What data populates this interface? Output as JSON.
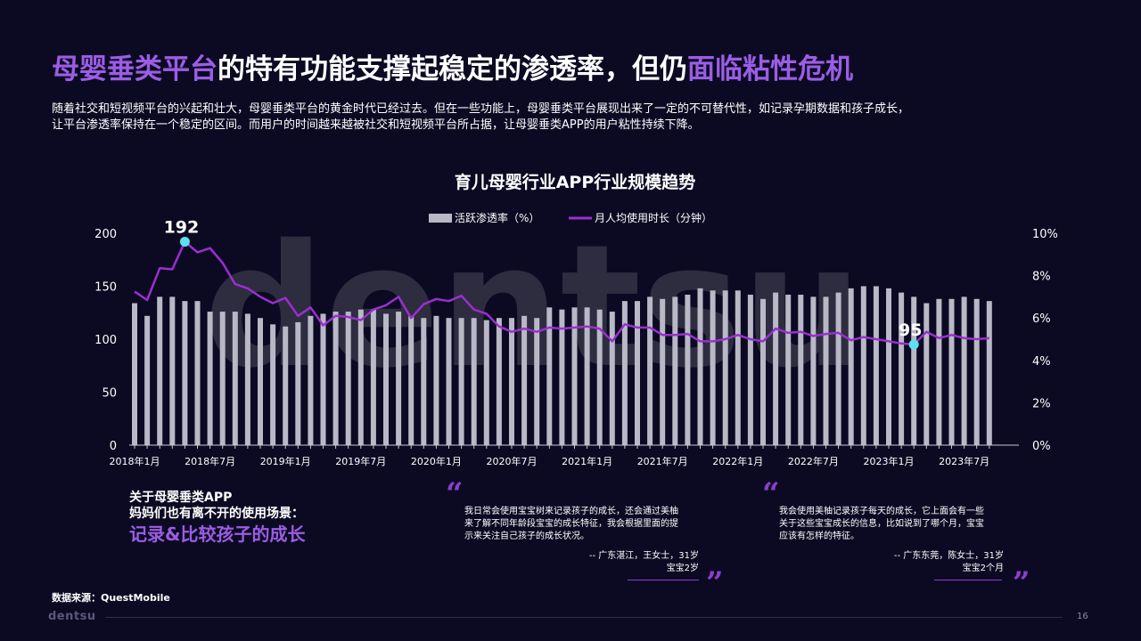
{
  "slide": {
    "title_parts": [
      "母婴垂类平台",
      "的特有功能支撑起稳定的渗透率，但仍",
      "面临粘性危机"
    ],
    "intro_lines": [
      "随着社交和短视频平台的兴起和壮大，母婴垂类平台的黄金时代已经过去。但在一些功能上，母婴垂类平台展现出来了一定的不可替代性，如记录孕期数据和孩子成长，",
      "让平台渗透率保持在一个稳定的区间。而用户的时间越来越被社交和短视频平台所占据，让母婴垂类APP的用户粘性持续下降。"
    ],
    "scene": {
      "line1": "关于母婴垂类APP",
      "line2": "妈妈们也有离不开的使用场景：",
      "highlight": "记录&比较孩子的成长"
    },
    "quotes": [
      {
        "open_mark": "“",
        "close_mark": "”",
        "lines": [
          "我日常会使用宝宝树来记录孩子的成长，还会通过美柚",
          "来了解不同年龄段宝宝的成长特征，我会根据里面的提",
          "示来关注自己孩子的成长状况。"
        ],
        "attr1": "-- 广东湛江，王女士，31岁",
        "attr2": "宝宝2岁"
      },
      {
        "open_mark": "“",
        "close_mark": "”",
        "lines": [
          "我会使用美柚记录孩子每天的成长，它上面会有一些",
          "关于这些宝宝成长的信息，比如说到了哪个月，宝宝",
          "应该有怎样的特征。"
        ],
        "attr1": "-- 广东东莞，陈女士，31岁",
        "attr2": "宝宝2个月"
      }
    ],
    "source": "数据来源：QuestMobile",
    "footer_logo": "dentsu",
    "watermark": "dentsu",
    "page_number": "16"
  },
  "chart_data": {
    "type": "bar",
    "title": "育儿母婴行业APP行业规模趋势",
    "x_tick_labels": [
      "2018年1月",
      "2018年7月",
      "2019年1月",
      "2019年7月",
      "2020年1月",
      "2020年7月",
      "2021年1月",
      "2021年7月",
      "2022年1月",
      "2022年7月",
      "2023年1月",
      "2023年7月"
    ],
    "y_left": {
      "min": 0,
      "max": 200,
      "ticks": [
        "0",
        "50",
        "100",
        "150",
        "200"
      ]
    },
    "y_right": {
      "min": 0,
      "max": 10,
      "ticks": [
        "0%",
        "2%",
        "4%",
        "6%",
        "8%",
        "10%"
      ]
    },
    "series": [
      {
        "name": "活跃渗透率（%）",
        "type": "bar",
        "axis": "right",
        "color": "#b9b8c6",
        "values": [
          6.7,
          6.1,
          7.0,
          7.0,
          6.8,
          6.8,
          6.3,
          6.3,
          6.3,
          6.2,
          6.0,
          5.7,
          5.6,
          5.8,
          6.1,
          6.2,
          6.3,
          6.3,
          6.4,
          6.4,
          6.2,
          6.3,
          6.1,
          6.0,
          6.1,
          6.0,
          6.0,
          6.0,
          5.9,
          6.0,
          6.0,
          6.1,
          6.0,
          6.5,
          6.4,
          6.5,
          6.5,
          6.4,
          6.3,
          6.8,
          6.8,
          7.0,
          6.9,
          7.0,
          7.1,
          7.4,
          7.3,
          7.3,
          7.3,
          7.1,
          6.9,
          7.2,
          7.1,
          7.1,
          7.0,
          7.0,
          7.2,
          7.4,
          7.5,
          7.5,
          7.4,
          7.2,
          7.0,
          6.7,
          6.9,
          6.9,
          7.0,
          6.9,
          6.8
        ],
        "unit": "%"
      },
      {
        "name": "月人均使用时长（分钟）",
        "type": "line",
        "axis": "left",
        "color": "#9a2fd0",
        "values": [
          145,
          137,
          167,
          166,
          192,
          182,
          186,
          172,
          152,
          148,
          140,
          134,
          139,
          122,
          130,
          113,
          122,
          121,
          118,
          128,
          132,
          140,
          120,
          133,
          138,
          136,
          141,
          128,
          124,
          112,
          107,
          110,
          107,
          111,
          110,
          111,
          112,
          110,
          98,
          114,
          111,
          111,
          104,
          104,
          105,
          98,
          98,
          100,
          104,
          100,
          98,
          110,
          106,
          107,
          103,
          105,
          106,
          99,
          102,
          100,
          98,
          96,
          95,
          107,
          101,
          104,
          101,
          100,
          101
        ],
        "labeled_points": [
          {
            "index": 4,
            "label": "192"
          },
          {
            "index": 62,
            "label": "95"
          }
        ]
      }
    ],
    "legend": {
      "bar_label": "活跃渗透率（%）",
      "line_label": "月人均使用时长（分钟）",
      "position": "top-center"
    }
  }
}
